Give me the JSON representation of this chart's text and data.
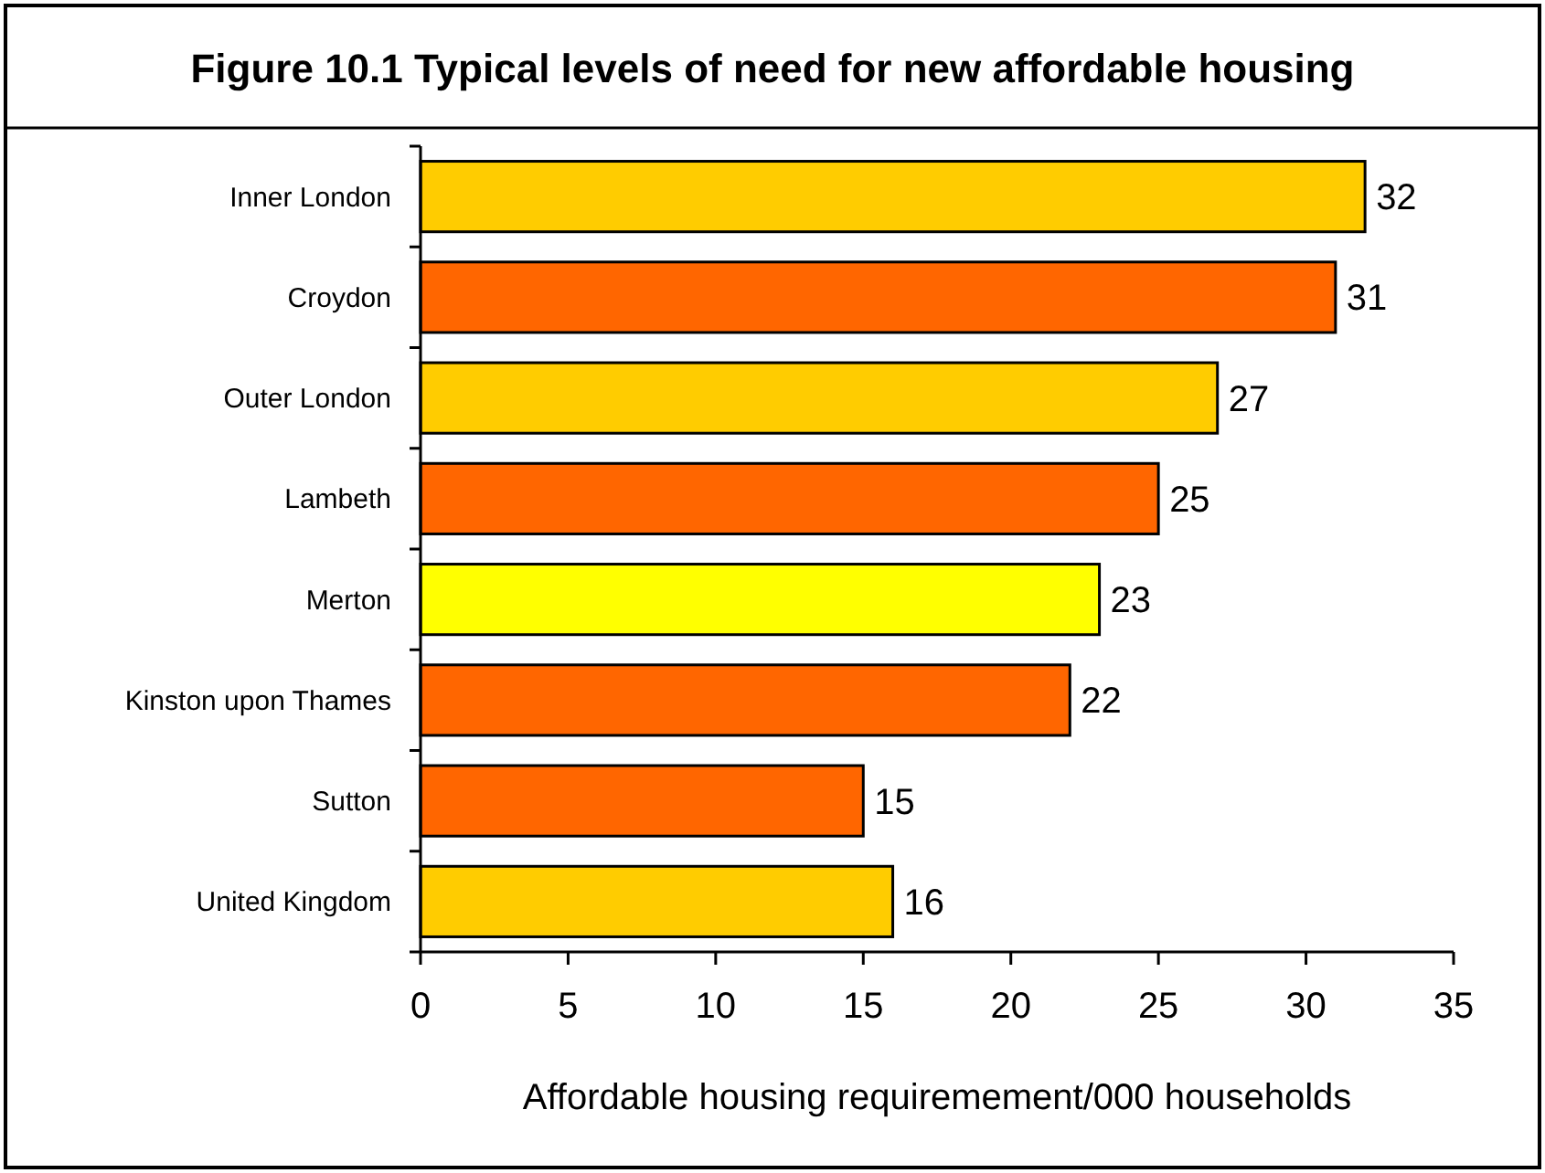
{
  "chart_data": {
    "type": "bar",
    "orientation": "horizontal",
    "title": "Figure 10.1 Typical levels of need for new affordable housing",
    "xlabel": "Affordable housing requiremement/000 households",
    "categories": [
      "Inner London",
      "Croydon",
      "Outer London",
      "Lambeth",
      "Merton",
      "Kinston upon Thames",
      "Sutton",
      "United Kingdom"
    ],
    "values": [
      32,
      31,
      27,
      25,
      23,
      22,
      15,
      16
    ],
    "colors": [
      "#ffcc00",
      "#ff6600",
      "#ffcc00",
      "#ff6600",
      "#ffff00",
      "#ff6600",
      "#ff6600",
      "#ffcc00"
    ],
    "xlim": [
      0,
      35
    ],
    "xticks": [
      0,
      5,
      10,
      15,
      20,
      25,
      30,
      35
    ],
    "data_labels": true,
    "grid": false
  }
}
